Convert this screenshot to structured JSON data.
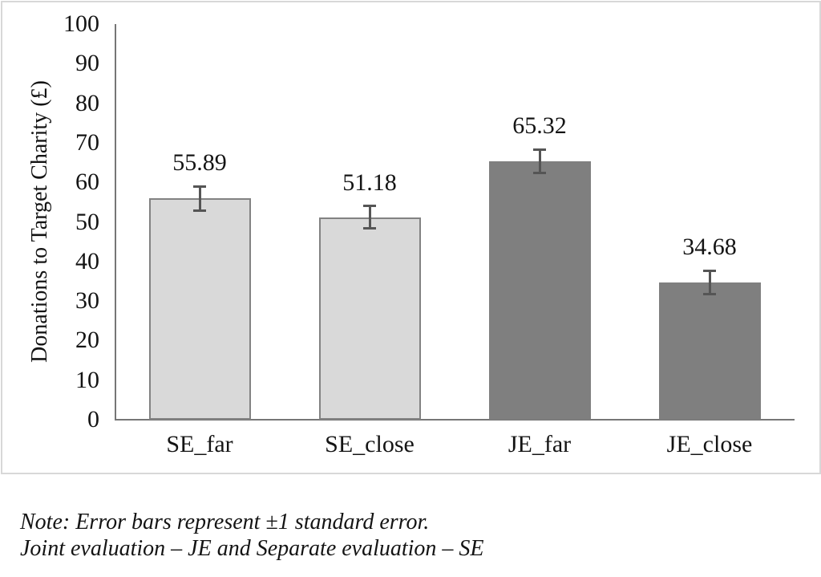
{
  "figure": {
    "note_lines": [
      "Note: Error bars represent ±1 standard error.",
      "Joint evaluation – JE and Separate evaluation – SE"
    ]
  },
  "chart_data": {
    "type": "bar",
    "title": "",
    "categories": [
      "SE_far",
      "SE_close",
      "JE_far",
      "JE_close"
    ],
    "values": [
      55.89,
      51.18,
      65.32,
      34.68
    ],
    "value_labels": [
      "55.89",
      "51.18",
      "65.32",
      "34.68"
    ],
    "errors_plus_minus": [
      3.1,
      2.8,
      3.0,
      3.0
    ],
    "ylabel": "Donations to Target Charity (£)",
    "xlabel": "",
    "ylim": [
      0,
      100
    ],
    "yticks": [
      0,
      10,
      20,
      30,
      40,
      50,
      60,
      70,
      80,
      90,
      100
    ],
    "grid": false,
    "legend_position": "none",
    "series_colors": {
      "SE": "#d9d9d9",
      "JE": "#7f7f7f"
    },
    "bar_colors": [
      "#d9d9d9",
      "#d9d9d9",
      "#7f7f7f",
      "#7f7f7f"
    ],
    "bar_border_colors": [
      "#828282",
      "#828282",
      "#7f7f7f",
      "#7f7f7f"
    ],
    "axis_color": "#767676",
    "error_bar_color": "#555555",
    "text_color": "#141414",
    "panel_border_color": "#d8d8d8"
  }
}
